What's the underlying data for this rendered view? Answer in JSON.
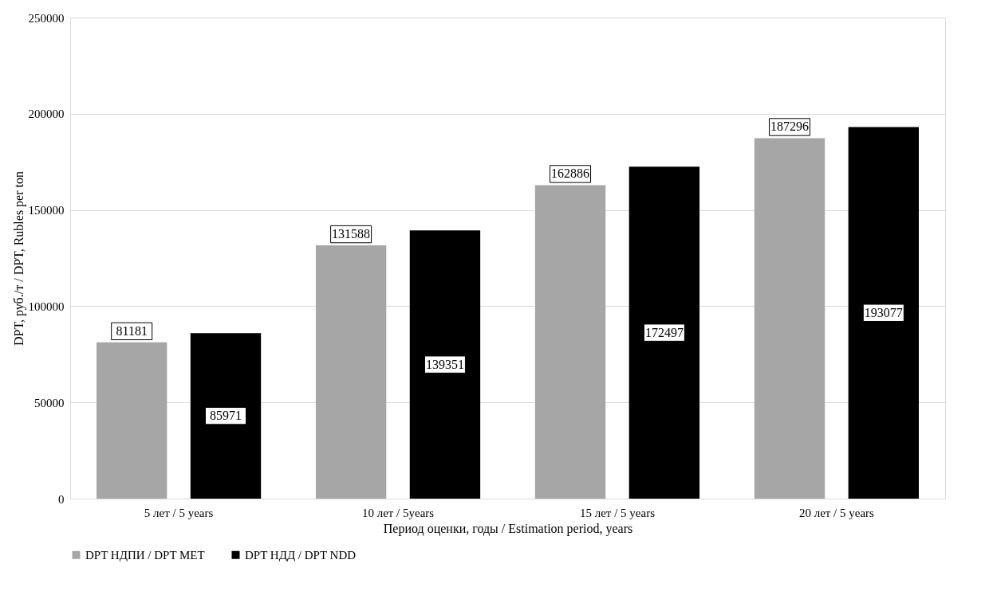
{
  "chart_data": {
    "type": "bar",
    "xlabel": "Период оценки, годы / Estimation period, years",
    "ylabel": "DPT, руб./т / DPT, Rubles per ton",
    "categories": [
      "5 лет / 5 years",
      "10 лет / 5years",
      "15 лет / 5 years",
      "20 лет / 5 years"
    ],
    "series": [
      {
        "name": "DPT НДПИ / DPT MET",
        "color": "#a6a6a6",
        "values": [
          81181,
          131588,
          162886,
          187296
        ]
      },
      {
        "name": "DPT НДД / DPT NDD",
        "color": "#000000",
        "values": [
          85971,
          139351,
          172497,
          193077
        ]
      }
    ],
    "ylim": [
      0,
      250000
    ],
    "yticks": [
      0,
      50000,
      100000,
      150000,
      200000,
      250000
    ],
    "grid": "y",
    "legend": "bottom",
    "data_labels": true
  }
}
